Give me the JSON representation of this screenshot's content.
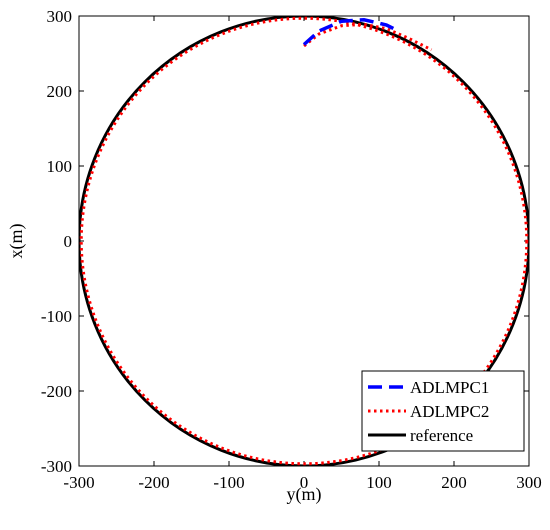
{
  "chart_data": {
    "type": "line",
    "xlabel": "y(m)",
    "ylabel": "x(m)",
    "xlim": [
      -300,
      300
    ],
    "ylim": [
      -300,
      300
    ],
    "xticks": [
      -300,
      -200,
      -100,
      0,
      100,
      200,
      300
    ],
    "yticks": [
      -300,
      -200,
      -100,
      0,
      100,
      200,
      300
    ],
    "grid": false,
    "legend_position": "bottom-right",
    "series": [
      {
        "name": "ADLMPC1",
        "style": "dashed",
        "color": "#0000ff",
        "points": [
          [
            0,
            262
          ],
          [
            20,
            280
          ],
          [
            50,
            293
          ],
          [
            80,
            295
          ],
          [
            110,
            288
          ],
          [
            120,
            283
          ]
        ]
      },
      {
        "name": "ADLMPC2",
        "style": "dotted",
        "color": "#ff0000",
        "shape": "circle",
        "center": [
          0,
          0
        ],
        "radius": 297,
        "start_points": [
          [
            0,
            260
          ],
          [
            20,
            276
          ],
          [
            50,
            287
          ],
          [
            80,
            289
          ],
          [
            110,
            283
          ],
          [
            140,
            270
          ],
          [
            170,
            255
          ]
        ]
      },
      {
        "name": "reference",
        "style": "solid",
        "color": "#000000",
        "shape": "circle",
        "center": [
          0,
          0
        ],
        "radius": 300
      }
    ]
  }
}
